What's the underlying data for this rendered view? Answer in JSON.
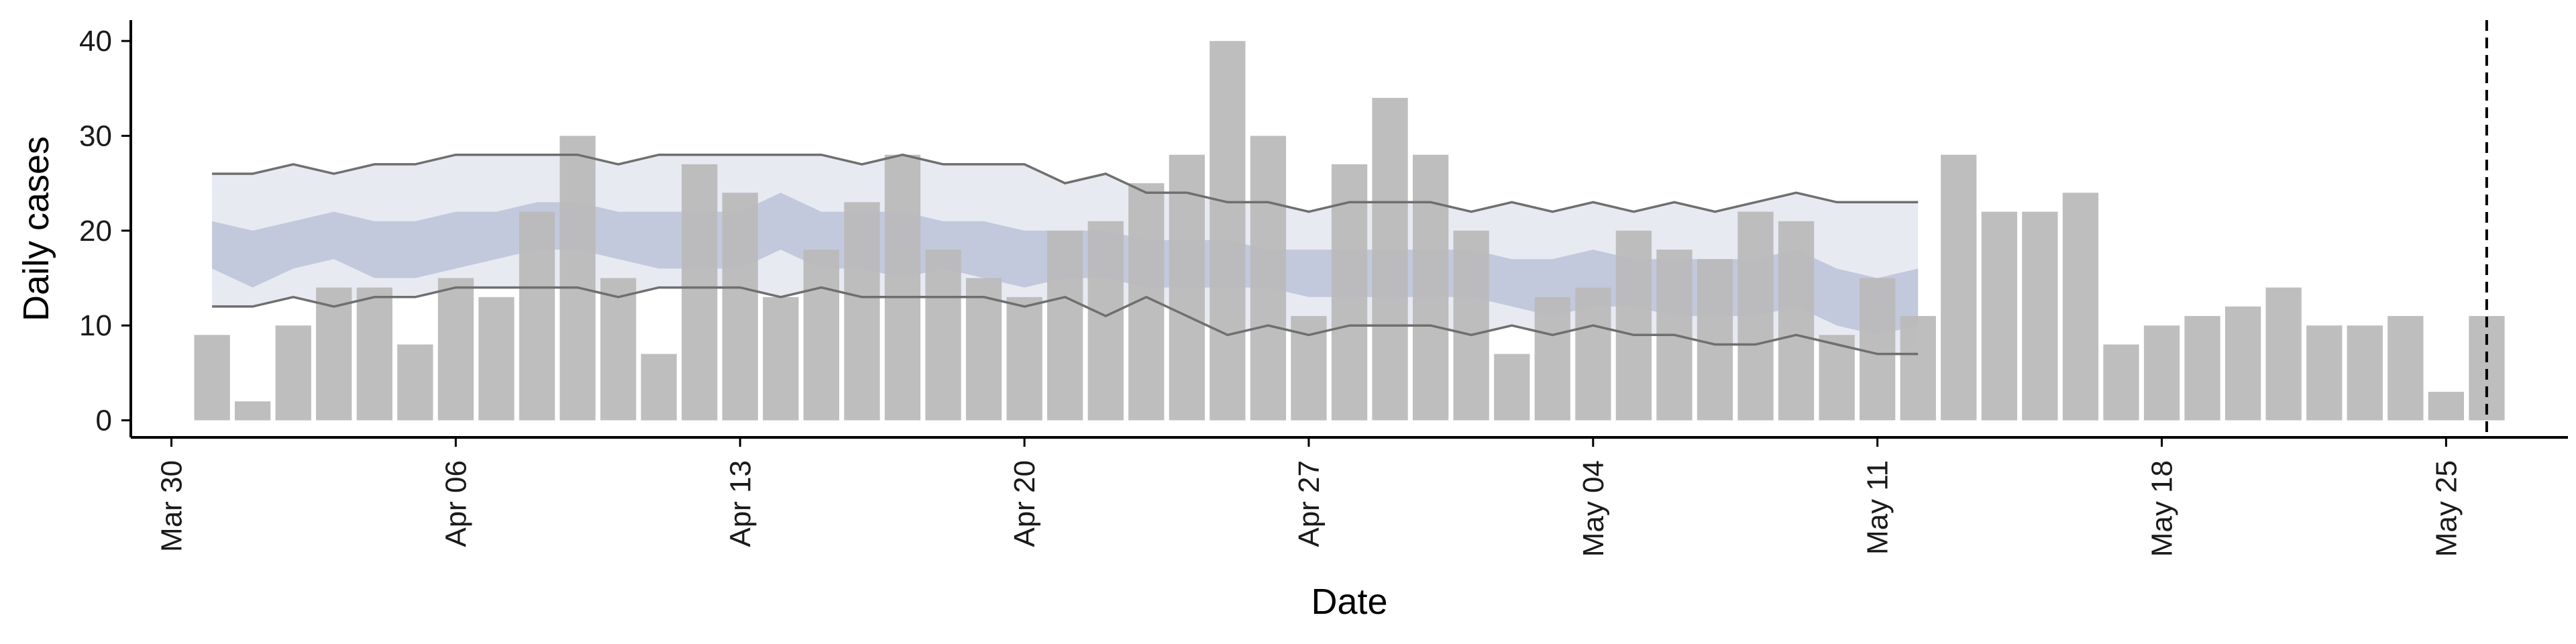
{
  "chart_data": {
    "type": "bar",
    "title": "",
    "xlabel": "Date",
    "ylabel": "Daily cases",
    "ylim": [
      -1.8,
      42.2
    ],
    "xlim": [
      "2020-03-29",
      "2020-05-28"
    ],
    "yticks": [
      0,
      10,
      20,
      30,
      40
    ],
    "xticks": [
      {
        "date": "2020-03-30",
        "label": "Mar 30"
      },
      {
        "date": "2020-04-06",
        "label": "Apr 06"
      },
      {
        "date": "2020-04-13",
        "label": "Apr 13"
      },
      {
        "date": "2020-04-20",
        "label": "Apr 20"
      },
      {
        "date": "2020-04-27",
        "label": "Apr 27"
      },
      {
        "date": "2020-05-04",
        "label": "May 04"
      },
      {
        "date": "2020-05-11",
        "label": "May 11"
      },
      {
        "date": "2020-05-18",
        "label": "May 18"
      },
      {
        "date": "2020-05-25",
        "label": "May 25"
      }
    ],
    "grid": false,
    "legend": "none",
    "bars": {
      "color": "#bababa",
      "dates": [
        "2020-03-31",
        "2020-04-01",
        "2020-04-02",
        "2020-04-03",
        "2020-04-04",
        "2020-04-05",
        "2020-04-06",
        "2020-04-07",
        "2020-04-08",
        "2020-04-09",
        "2020-04-10",
        "2020-04-11",
        "2020-04-12",
        "2020-04-13",
        "2020-04-14",
        "2020-04-15",
        "2020-04-16",
        "2020-04-17",
        "2020-04-18",
        "2020-04-19",
        "2020-04-20",
        "2020-04-21",
        "2020-04-22",
        "2020-04-23",
        "2020-04-24",
        "2020-04-25",
        "2020-04-26",
        "2020-04-27",
        "2020-04-28",
        "2020-04-29",
        "2020-04-30",
        "2020-05-01",
        "2020-05-02",
        "2020-05-03",
        "2020-05-04",
        "2020-05-05",
        "2020-05-06",
        "2020-05-07",
        "2020-05-08",
        "2020-05-09",
        "2020-05-10",
        "2020-05-11",
        "2020-05-12",
        "2020-05-13",
        "2020-05-14",
        "2020-05-15",
        "2020-05-16",
        "2020-05-17",
        "2020-05-18",
        "2020-05-19",
        "2020-05-20",
        "2020-05-21",
        "2020-05-22",
        "2020-05-23",
        "2020-05-24",
        "2020-05-25",
        "2020-05-26"
      ],
      "values": [
        9,
        2,
        10,
        14,
        14,
        8,
        15,
        13,
        22,
        30,
        15,
        7,
        27,
        24,
        13,
        18,
        23,
        28,
        18,
        15,
        13,
        20,
        21,
        25,
        28,
        40,
        30,
        11,
        27,
        34,
        28,
        20,
        7,
        13,
        14,
        20,
        18,
        17,
        22,
        21,
        9,
        15,
        11,
        28,
        22,
        22,
        24,
        8,
        10,
        11,
        12,
        14,
        10,
        10,
        11,
        3,
        11
      ]
    },
    "bands": {
      "dates": [
        "2020-03-31",
        "2020-04-01",
        "2020-04-02",
        "2020-04-03",
        "2020-04-04",
        "2020-04-05",
        "2020-04-06",
        "2020-04-07",
        "2020-04-08",
        "2020-04-09",
        "2020-04-10",
        "2020-04-11",
        "2020-04-12",
        "2020-04-13",
        "2020-04-14",
        "2020-04-15",
        "2020-04-16",
        "2020-04-17",
        "2020-04-18",
        "2020-04-19",
        "2020-04-20",
        "2020-04-21",
        "2020-04-22",
        "2020-04-23",
        "2020-04-24",
        "2020-04-25",
        "2020-04-26",
        "2020-04-27",
        "2020-04-28",
        "2020-04-29",
        "2020-04-30",
        "2020-05-01",
        "2020-05-02",
        "2020-05-03",
        "2020-05-04",
        "2020-05-05",
        "2020-05-06",
        "2020-05-07",
        "2020-05-08",
        "2020-05-09",
        "2020-05-10",
        "2020-05-11",
        "2020-05-12"
      ],
      "outer_color": "#e8eaf2",
      "inner_color": "#c3c9dc",
      "outer_upper": [
        26,
        26,
        27,
        26,
        27,
        27,
        28,
        28,
        28,
        28,
        27,
        28,
        28,
        28,
        28,
        28,
        27,
        28,
        27,
        27,
        27,
        25,
        26,
        24,
        24,
        23,
        23,
        22,
        23,
        23,
        23,
        22,
        23,
        22,
        23,
        22,
        23,
        22,
        23,
        24,
        23,
        23,
        23
      ],
      "outer_lower": [
        12,
        12,
        13,
        12,
        13,
        13,
        14,
        14,
        14,
        14,
        13,
        14,
        14,
        14,
        13,
        14,
        13,
        13,
        13,
        13,
        12,
        13,
        11,
        13,
        11,
        9,
        10,
        9,
        10,
        10,
        10,
        9,
        10,
        9,
        10,
        9,
        9,
        8,
        8,
        9,
        8,
        7,
        7
      ],
      "inner_upper": [
        21,
        20,
        21,
        22,
        21,
        21,
        22,
        22,
        23,
        23,
        22,
        22,
        22,
        22,
        24,
        22,
        22,
        22,
        21,
        21,
        20,
        20,
        20,
        19,
        19,
        19,
        18,
        18,
        18,
        18,
        18,
        18,
        17,
        17,
        18,
        17,
        17,
        17,
        17,
        18,
        16,
        15,
        16
      ],
      "inner_lower": [
        16,
        14,
        16,
        17,
        15,
        15,
        16,
        17,
        18,
        18,
        17,
        16,
        16,
        16,
        18,
        16,
        16,
        15,
        16,
        15,
        14,
        15,
        15,
        14,
        14,
        14,
        14,
        13,
        13,
        13,
        13,
        13,
        12,
        11,
        12,
        12,
        11,
        11,
        11,
        12,
        10,
        9,
        10
      ],
      "line_color": "#6f6f6f"
    },
    "vline": {
      "date": "2020-05-26",
      "style": "dashed",
      "color": "#000000"
    }
  }
}
